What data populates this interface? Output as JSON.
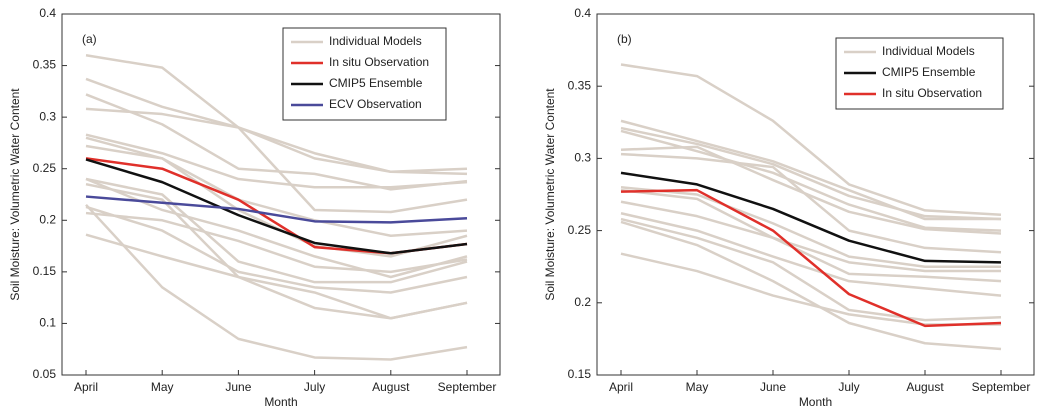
{
  "chart_data": [
    {
      "type": "line",
      "label": "(a)",
      "x_label": "Month",
      "y_label": "Soil Moisture: Volumetric Water Content",
      "categories": [
        "April",
        "May",
        "June",
        "July",
        "August",
        "September"
      ],
      "ylim": [
        0.05,
        0.4
      ],
      "yticks": [
        0.05,
        0.1,
        0.15,
        0.2,
        0.25,
        0.3,
        0.35,
        0.4
      ],
      "legend": "upper right",
      "series": [
        {
          "name": "Individual Models",
          "color": "#d9d0c7",
          "values": [
            [
              0.36,
              0.348,
              0.29,
              0.265,
              0.247,
              0.25
            ],
            [
              0.337,
              0.31,
              0.29,
              0.26,
              0.247,
              0.245
            ],
            [
              0.322,
              0.293,
              0.25,
              0.245,
              0.23,
              0.238
            ],
            [
              0.308,
              0.303,
              0.29,
              0.21,
              0.208,
              0.22
            ],
            [
              0.283,
              0.265,
              0.24,
              0.232,
              0.232,
              0.237
            ],
            [
              0.28,
              0.26,
              0.22,
              0.2,
              0.185,
              0.19
            ],
            [
              0.272,
              0.26,
              0.21,
              0.175,
              0.165,
              0.185
            ],
            [
              0.24,
              0.21,
              0.19,
              0.165,
              0.145,
              0.165
            ],
            [
              0.24,
              0.225,
              0.16,
              0.14,
              0.14,
              0.16
            ],
            [
              0.215,
              0.135,
              0.085,
              0.067,
              0.065,
              0.077
            ],
            [
              0.213,
              0.19,
              0.15,
              0.135,
              0.13,
              0.145
            ],
            [
              0.207,
              0.2,
              0.18,
              0.155,
              0.15,
              0.162
            ],
            [
              0.186,
              0.165,
              0.145,
              0.13,
              0.105,
              0.12
            ],
            [
              0.235,
              0.22,
              0.145,
              0.115,
              0.105,
              0.12
            ]
          ]
        },
        {
          "name": "In situ Observation",
          "color": "#e0302a",
          "values": [
            0.26,
            0.25,
            0.22,
            0.174,
            0.168,
            0.177
          ]
        },
        {
          "name": "CMIP5 Ensemble",
          "color": "#111111",
          "values": [
            0.259,
            0.237,
            0.205,
            0.178,
            0.168,
            0.177
          ]
        },
        {
          "name": "ECV Observation",
          "color": "#4a4a9a",
          "values": [
            0.223,
            0.217,
            0.211,
            0.199,
            0.198,
            0.202
          ]
        }
      ]
    },
    {
      "type": "line",
      "label": "(b)",
      "x_label": "Month",
      "y_label": "Soil Moisture: Volumetric Water Content",
      "categories": [
        "April",
        "May",
        "June",
        "July",
        "August",
        "September"
      ],
      "ylim": [
        0.15,
        0.4
      ],
      "yticks": [
        0.15,
        0.2,
        0.25,
        0.3,
        0.35,
        0.4
      ],
      "legend": "upper right",
      "series": [
        {
          "name": "Individual Models",
          "color": "#d9d0c7",
          "values": [
            [
              0.365,
              0.357,
              0.326,
              0.282,
              0.264,
              0.261
            ],
            [
              0.326,
              0.312,
              0.298,
              0.278,
              0.258,
              0.258
            ],
            [
              0.321,
              0.31,
              0.296,
              0.274,
              0.26,
              0.258
            ],
            [
              0.319,
              0.305,
              0.29,
              0.268,
              0.252,
              0.25
            ],
            [
              0.306,
              0.308,
              0.285,
              0.263,
              0.251,
              0.248
            ],
            [
              0.303,
              0.3,
              0.294,
              0.25,
              0.238,
              0.235
            ],
            [
              0.28,
              0.275,
              0.255,
              0.232,
              0.225,
              0.225
            ],
            [
              0.278,
              0.272,
              0.245,
              0.228,
              0.222,
              0.222
            ],
            [
              0.27,
              0.26,
              0.245,
              0.22,
              0.218,
              0.215
            ],
            [
              0.262,
              0.25,
              0.232,
              0.215,
              0.21,
              0.205
            ],
            [
              0.258,
              0.245,
              0.228,
              0.195,
              0.188,
              0.19
            ],
            [
              0.256,
              0.24,
              0.215,
              0.186,
              0.172,
              0.168
            ],
            [
              0.234,
              0.222,
              0.205,
              0.192,
              0.185,
              0.185
            ]
          ]
        },
        {
          "name": "CMIP5 Ensemble",
          "color": "#111111",
          "values": [
            0.29,
            0.282,
            0.265,
            0.243,
            0.229,
            0.228
          ]
        },
        {
          "name": "In situ Observation",
          "color": "#e0302a",
          "values": [
            0.277,
            0.278,
            0.25,
            0.206,
            0.184,
            0.186
          ]
        }
      ]
    }
  ]
}
